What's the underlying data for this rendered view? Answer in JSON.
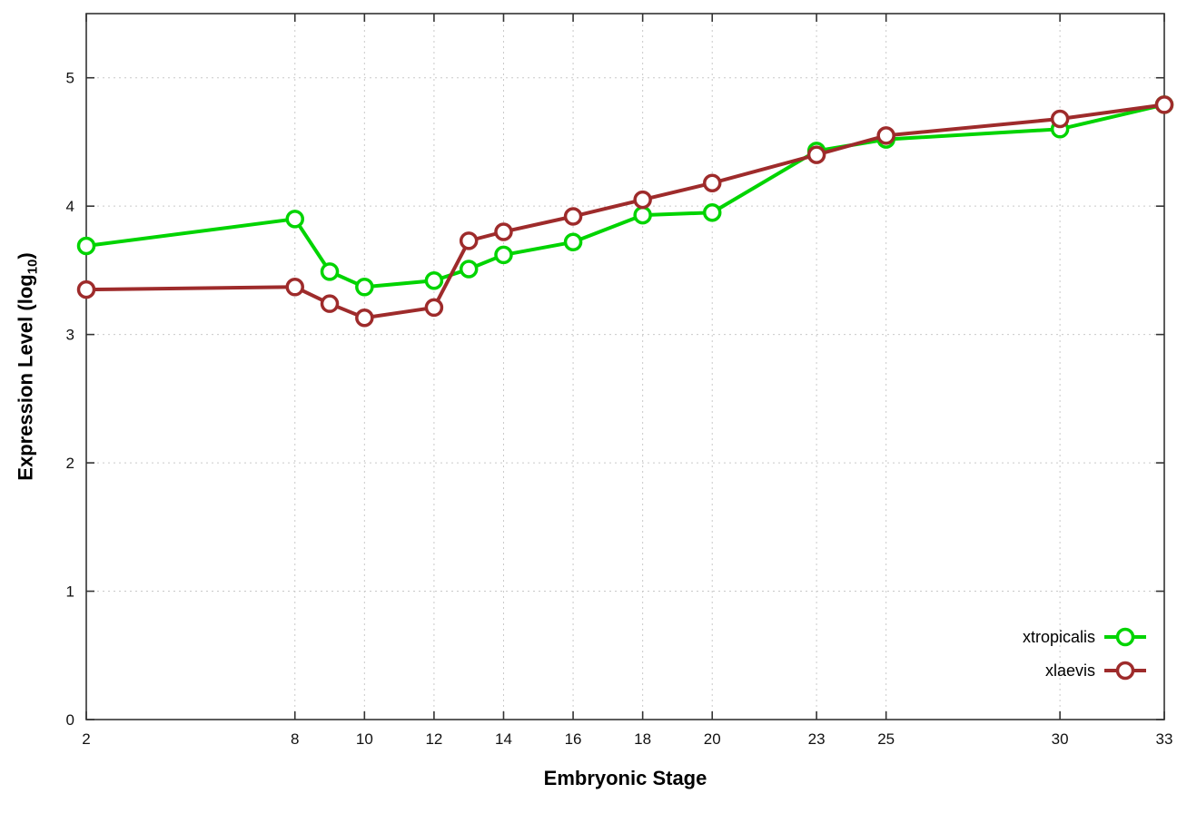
{
  "page": {
    "background": "#ffffff"
  },
  "chart_data": {
    "type": "line",
    "title": "",
    "xlabel": "Embryonic Stage",
    "ylabel": "Expression Level (log10)",
    "ylabel_parts": [
      "Expression Level (log",
      "10",
      ")"
    ],
    "xlim": [
      2,
      33
    ],
    "ylim": [
      0,
      5.5
    ],
    "x_ticks": [
      2,
      8,
      10,
      12,
      14,
      16,
      18,
      20,
      23,
      25,
      30,
      33
    ],
    "y_ticks": [
      0,
      1,
      2,
      3,
      4,
      5
    ],
    "grid": true,
    "marker": "open-circle",
    "axis_color": "#333333",
    "grid_color": "#c9c9c9",
    "tick_label_color": "#111111",
    "legend": {
      "position": "bottom-right",
      "entries": [
        "xtropicalis",
        "xlaevis"
      ]
    },
    "x": [
      2,
      8,
      9,
      10,
      12,
      13,
      14,
      16,
      18,
      20,
      23,
      25,
      30,
      33
    ],
    "series": [
      {
        "name": "xtropicalis",
        "color": "#00d400",
        "values": [
          3.69,
          3.9,
          3.49,
          3.37,
          3.42,
          3.51,
          3.62,
          3.72,
          3.93,
          3.95,
          4.43,
          4.52,
          4.6,
          4.79
        ]
      },
      {
        "name": "xlaevis",
        "color": "#9e2b2b",
        "values": [
          3.35,
          3.37,
          3.24,
          3.13,
          3.21,
          3.73,
          3.8,
          3.92,
          4.05,
          4.18,
          4.4,
          4.55,
          4.68,
          4.79
        ]
      }
    ]
  }
}
